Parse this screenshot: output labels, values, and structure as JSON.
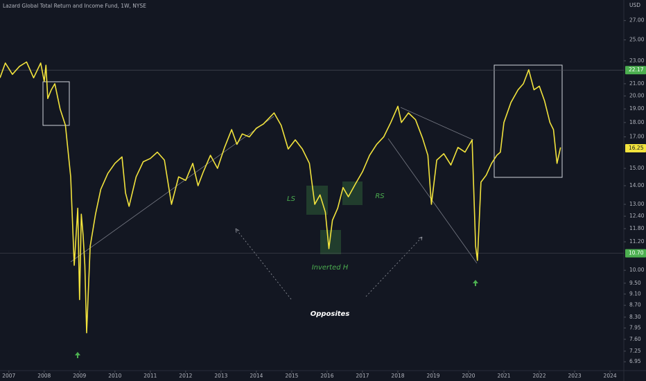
{
  "chart_data": {
    "type": "line",
    "title": "Lazard Global Total Return and Income Fund, 1W, NYSE",
    "currency": "USD",
    "log_scale": true,
    "grid": false,
    "color": "#f2e33d",
    "x": [
      2006.75,
      2006.9,
      2007.1,
      2007.3,
      2007.5,
      2007.7,
      2007.9,
      2008.0,
      2008.05,
      2008.1,
      2008.2,
      2008.3,
      2008.45,
      2008.6,
      2008.75,
      2008.85,
      2008.95,
      2009.0,
      2009.05,
      2009.1,
      2009.15,
      2009.2,
      2009.3,
      2009.45,
      2009.6,
      2009.8,
      2010.0,
      2010.2,
      2010.3,
      2010.4,
      2010.6,
      2010.8,
      2011.0,
      2011.2,
      2011.4,
      2011.6,
      2011.8,
      2012.0,
      2012.2,
      2012.35,
      2012.5,
      2012.7,
      2012.9,
      2013.1,
      2013.3,
      2013.45,
      2013.6,
      2013.8,
      2014.0,
      2014.2,
      2014.5,
      2014.7,
      2014.9,
      2015.1,
      2015.3,
      2015.5,
      2015.65,
      2015.8,
      2015.95,
      2016.05,
      2016.15,
      2016.3,
      2016.45,
      2016.6,
      2016.8,
      2017.0,
      2017.2,
      2017.4,
      2017.6,
      2017.8,
      2018.0,
      2018.1,
      2018.3,
      2018.5,
      2018.7,
      2018.85,
      2018.95,
      2019.1,
      2019.3,
      2019.5,
      2019.7,
      2019.9,
      2020.1,
      2020.2,
      2020.25,
      2020.35,
      2020.5,
      2020.65,
      2020.8,
      2020.9,
      2021.0,
      2021.2,
      2021.4,
      2021.55,
      2021.7,
      2021.85,
      2022.0,
      2022.15,
      2022.3,
      2022.4,
      2022.5,
      2022.6
    ],
    "values": [
      21.5,
      22.8,
      21.8,
      22.5,
      22.9,
      21.5,
      22.8,
      21.2,
      22.6,
      19.8,
      20.5,
      21.0,
      19.0,
      17.8,
      14.5,
      10.2,
      12.8,
      8.9,
      12.5,
      11.5,
      10.2,
      7.8,
      11.0,
      12.5,
      13.8,
      14.7,
      15.3,
      15.7,
      13.6,
      12.9,
      14.5,
      15.4,
      15.6,
      16.0,
      15.5,
      13.0,
      14.5,
      14.3,
      15.3,
      14.0,
      14.8,
      15.8,
      15.0,
      16.3,
      17.5,
      16.5,
      17.2,
      17.0,
      17.6,
      17.9,
      18.7,
      17.8,
      16.2,
      16.8,
      16.2,
      15.3,
      13.0,
      13.5,
      12.6,
      10.9,
      12.2,
      12.8,
      13.9,
      13.4,
      14.1,
      14.8,
      15.8,
      16.5,
      17.0,
      18.0,
      19.2,
      18.0,
      18.7,
      18.2,
      16.9,
      15.8,
      13.0,
      15.5,
      15.9,
      15.2,
      16.3,
      16.0,
      16.8,
      11.0,
      10.4,
      14.2,
      14.6,
      15.3,
      15.8,
      16.0,
      18.0,
      19.5,
      20.5,
      21.0,
      22.2,
      20.5,
      20.8,
      19.6,
      18.0,
      17.5,
      15.3,
      16.3
    ],
    "xlim": [
      2006.75,
      2024.39
    ],
    "xticks": [
      2007,
      2008,
      2009,
      2010,
      2011,
      2012,
      2013,
      2014,
      2015,
      2016,
      2017,
      2018,
      2019,
      2020,
      2021,
      2022,
      2023,
      2024
    ],
    "ylim": [
      6.71,
      29.3
    ],
    "yticks": [
      {
        "value": 27,
        "label": "27.00"
      },
      {
        "value": 25,
        "label": "25.00"
      },
      {
        "value": 23,
        "label": "23.00"
      },
      {
        "value": 21,
        "label": "21.00"
      },
      {
        "value": 20,
        "label": "20.00"
      },
      {
        "value": 19,
        "label": "19.00"
      },
      {
        "value": 18,
        "label": "18.00"
      },
      {
        "value": 17,
        "label": "17.00"
      },
      {
        "value": 15,
        "label": "15.00"
      },
      {
        "value": 14,
        "label": "14.00"
      },
      {
        "value": 13,
        "label": "13.00"
      },
      {
        "value": 12.4,
        "label": "12.40"
      },
      {
        "value": 11.8,
        "label": "11.80"
      },
      {
        "value": 11.2,
        "label": "11.20"
      },
      {
        "value": 10,
        "label": "10.00"
      },
      {
        "value": 9.5,
        "label": "9.50"
      },
      {
        "value": 9.1,
        "label": "9.10"
      },
      {
        "value": 8.7,
        "label": "8.70"
      },
      {
        "value": 8.3,
        "label": "8.30"
      },
      {
        "value": 7.95,
        "label": "7.95"
      },
      {
        "value": 7.6,
        "label": "7.60"
      },
      {
        "value": 7.25,
        "label": "7.25"
      },
      {
        "value": 6.95,
        "label": "6.95"
      }
    ],
    "price_labels": [
      {
        "value": 22.17,
        "label": "22.17",
        "color": "#4caf50"
      },
      {
        "value": 16.25,
        "label": "16.25",
        "color": "#f2e33d"
      },
      {
        "value": 10.7,
        "label": "10.70",
        "color": "#4caf50"
      }
    ],
    "annotations": [
      "LS",
      "RS",
      "Inverted H",
      "Opposites"
    ]
  }
}
